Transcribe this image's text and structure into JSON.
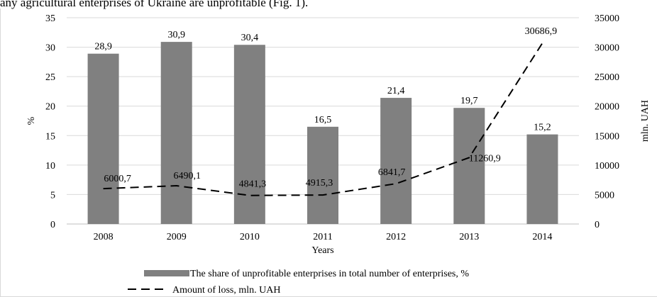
{
  "caption": "any agricultural enterprises of Ukraine are unprofitable (Fig. 1).",
  "chart_data": {
    "type": "bar",
    "categories": [
      "2008",
      "2009",
      "2010",
      "2011",
      "2012",
      "2013",
      "2014"
    ],
    "series": [
      {
        "name": "The share of unprofitable enterprises in total number of enterprises, %",
        "type": "bar",
        "axis": "left",
        "values": [
          28.9,
          30.9,
          30.4,
          16.5,
          21.4,
          19.7,
          15.2
        ],
        "labels": [
          "28,9",
          "30,9",
          "30,4",
          "16,5",
          "21,4",
          "19,7",
          "15,2"
        ],
        "color": "#808080"
      },
      {
        "name": "Amount of loss, mln. UAH",
        "type": "line",
        "style": "dashed",
        "axis": "right",
        "values": [
          6000.7,
          6490.1,
          4841.3,
          4915.3,
          6841.7,
          11260.9,
          30686.9
        ],
        "labels": [
          "6000,7",
          "6490,1",
          "4841,3",
          "4915,3",
          "6841,7",
          "11260,9",
          "30686,9"
        ],
        "color": "#000000"
      }
    ],
    "xlabel": "Years",
    "ylabel": "%",
    "ylabel_right": "mln. UAH",
    "ylim": [
      0,
      35
    ],
    "ylim_right": [
      0,
      35000
    ],
    "yticks": [
      "0",
      "5",
      "10",
      "15",
      "20",
      "25",
      "30",
      "35"
    ],
    "yticks_right": [
      "0",
      "5000",
      "10000",
      "15000",
      "20000",
      "25000",
      "30000",
      "35000"
    ],
    "grid": "horizontal",
    "legend": "bottom"
  }
}
